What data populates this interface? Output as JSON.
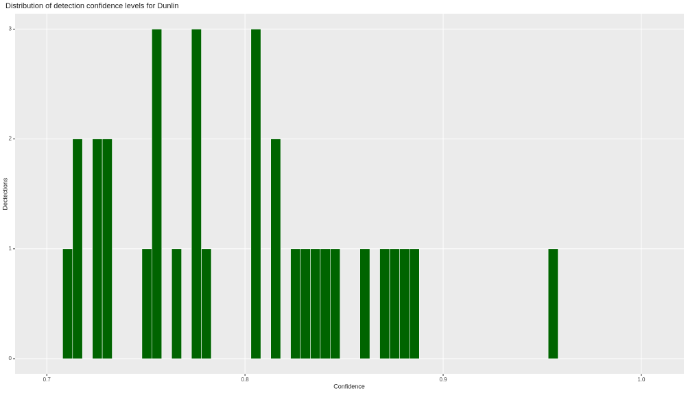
{
  "chart_data": {
    "type": "histogram",
    "title": "Distribution of detection confidence levels for Dunlin",
    "x_label": "Confidence",
    "y_label": "Dectections",
    "bins": [
      0.708,
      0.713,
      0.718,
      0.723,
      0.728,
      0.733,
      0.738,
      0.743,
      0.748,
      0.753,
      0.758,
      0.763,
      0.768,
      0.773,
      0.778,
      0.783,
      0.788,
      0.793,
      0.798,
      0.803,
      0.808,
      0.813,
      0.818,
      0.823,
      0.828,
      0.833,
      0.838,
      0.843,
      0.848,
      0.853,
      0.858,
      0.863,
      0.868,
      0.873,
      0.878,
      0.883,
      0.888,
      0.893,
      0.898,
      0.903,
      0.908,
      0.913,
      0.918,
      0.923,
      0.928,
      0.933,
      0.938,
      0.943,
      0.948,
      0.953,
      0.958
    ],
    "counts": [
      1,
      2,
      0,
      2,
      2,
      0,
      0,
      0,
      1,
      3,
      0,
      1,
      0,
      3,
      1,
      0,
      0,
      0,
      0,
      3,
      0,
      2,
      0,
      1,
      1,
      1,
      1,
      1,
      0,
      0,
      1,
      0,
      1,
      1,
      1,
      1,
      0,
      0,
      0,
      0,
      0,
      0,
      0,
      0,
      0,
      0,
      0,
      0,
      0,
      1
    ],
    "color": "#006400",
    "xlim": [
      0.684,
      1.0215
    ],
    "xticks": [
      0.7,
      0.8,
      0.9,
      {
        "value": 1.0,
        "label": "1.0"
      }
    ],
    "ylim": [
      -0.1375,
      3.14
    ],
    "yticks": [
      0,
      1,
      2,
      3
    ],
    "grid": true
  }
}
